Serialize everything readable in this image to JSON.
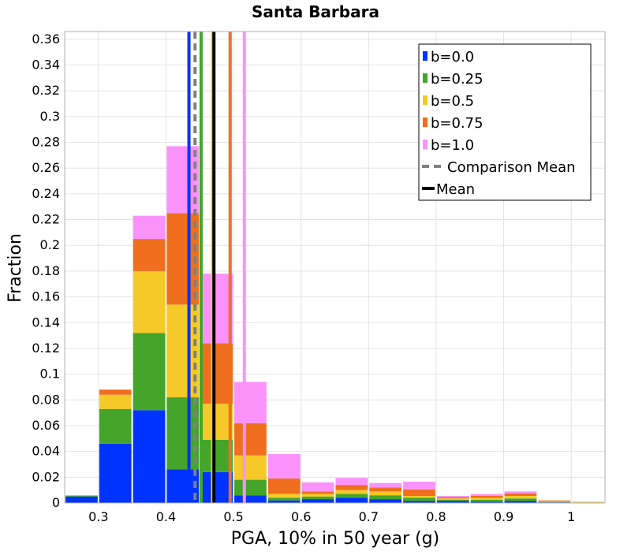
{
  "chart_data": {
    "type": "bar",
    "stacked": true,
    "title": "Santa Barbara",
    "xlabel": "PGA, 10% in 50 year (g)",
    "ylabel": "Fraction",
    "xlim": [
      0.25,
      1.05
    ],
    "ylim": [
      0,
      0.366
    ],
    "grid": true,
    "legend_position": "top-right",
    "x_ticks": [
      "0.3",
      "0.4",
      "0.5",
      "0.6",
      "0.7",
      "0.8",
      "0.9",
      "1"
    ],
    "y_ticks": [
      "0",
      "0.02",
      "0.04",
      "0.06",
      "0.08",
      "0.1",
      "0.12",
      "0.14",
      "0.16",
      "0.18",
      "0.2",
      "0.22",
      "0.24",
      "0.26",
      "0.28",
      "0.3",
      "0.32",
      "0.34",
      "0.36"
    ],
    "bin_width": 0.05,
    "x": [
      0.275,
      0.325,
      0.375,
      0.425,
      0.475,
      0.525,
      0.575,
      0.625,
      0.675,
      0.725,
      0.775,
      0.825,
      0.875,
      0.925,
      0.975,
      1.025
    ],
    "series": [
      {
        "name": "b=0.0",
        "color": "#0033ff",
        "values": [
          0.005,
          0.046,
          0.072,
          0.026,
          0.024,
          0.006,
          0.002,
          0.003,
          0.004,
          0.003,
          0.0015,
          0.0015,
          0.001,
          0.0015,
          0.0005,
          0.0002
        ]
      },
      {
        "name": "b=0.25",
        "color": "#44a52a",
        "values": [
          0.0005,
          0.027,
          0.06,
          0.056,
          0.025,
          0.012,
          0.002,
          0.002,
          0.003,
          0.003,
          0.0025,
          0.001,
          0.0015,
          0.002,
          0.0005,
          0.0002
        ]
      },
      {
        "name": "b=0.5",
        "color": "#f5c928",
        "values": [
          0.0003,
          0.011,
          0.048,
          0.072,
          0.028,
          0.019,
          0.003,
          0.002,
          0.003,
          0.003,
          0.0015,
          0.001,
          0.0015,
          0.002,
          0.0005,
          0.0002
        ]
      },
      {
        "name": "b=0.75",
        "color": "#f06f1e",
        "values": [
          0.0002,
          0.004,
          0.025,
          0.071,
          0.047,
          0.025,
          0.012,
          0.002,
          0.004,
          0.003,
          0.005,
          0.001,
          0.0015,
          0.002,
          0.0005,
          0.0002
        ]
      },
      {
        "name": "b=1.0",
        "color": "#f993f9",
        "values": [
          0,
          0,
          0.018,
          0.052,
          0.054,
          0.032,
          0.019,
          0.007,
          0.0055,
          0.0035,
          0.006,
          0.001,
          0.0015,
          0.0015,
          0,
          0.0002
        ]
      }
    ],
    "mean_lines": [
      {
        "name": "b=0.0",
        "x": 0.434,
        "color": "#0033ff"
      },
      {
        "name": "b=0.25",
        "x": 0.452,
        "color": "#44a52a"
      },
      {
        "name": "b=0.5",
        "x": 0.469,
        "color": "#f5c928"
      },
      {
        "name": "b=0.75",
        "x": 0.495,
        "color": "#f06f1e"
      },
      {
        "name": "b=1.0",
        "x": 0.516,
        "color": "#f993f9"
      }
    ],
    "comparison_mean": {
      "name": "Comparison Mean",
      "x": 0.443,
      "color": "#808080"
    },
    "overall_mean": {
      "name": "Mean",
      "x": 0.471,
      "color": "#000000"
    }
  }
}
